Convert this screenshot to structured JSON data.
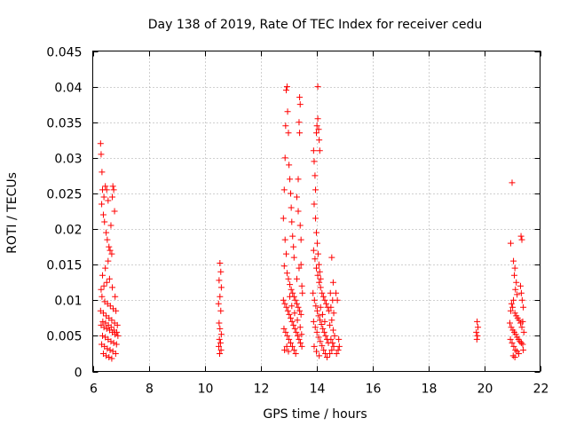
{
  "chart_data": {
    "type": "scatter",
    "title": "Day 138 of 2019, Rate Of TEC Index for receiver cedu",
    "xlabel": "GPS time / hours",
    "ylabel": "ROTI / TECUs",
    "xlim": [
      6,
      22
    ],
    "ylim": [
      0,
      0.045
    ],
    "x_ticks": [
      6,
      8,
      10,
      12,
      14,
      16,
      18,
      20,
      22
    ],
    "x_tick_labels": [
      "6",
      "8",
      "10",
      "12",
      "14",
      "16",
      "18",
      "20",
      "22"
    ],
    "y_ticks": [
      0,
      0.005,
      0.01,
      0.015,
      0.02,
      0.025,
      0.03,
      0.035,
      0.04,
      0.045
    ],
    "y_tick_labels": [
      "0",
      "0.005",
      "0.01",
      "0.015",
      "0.02",
      "0.025",
      "0.03",
      "0.035",
      "0.04",
      "0.045"
    ],
    "grid": true,
    "marker": "+",
    "color": "#ff0000",
    "series": [
      {
        "name": "ROTI",
        "points": [
          [
            6.28,
            0.032
          ],
          [
            6.3,
            0.0305
          ],
          [
            6.33,
            0.028
          ],
          [
            6.35,
            0.0255
          ],
          [
            6.4,
            0.0245
          ],
          [
            6.32,
            0.0235
          ],
          [
            6.45,
            0.026
          ],
          [
            6.5,
            0.0255
          ],
          [
            6.55,
            0.024
          ],
          [
            6.38,
            0.022
          ],
          [
            6.42,
            0.021
          ],
          [
            6.48,
            0.0195
          ],
          [
            6.52,
            0.0185
          ],
          [
            6.58,
            0.0175
          ],
          [
            6.62,
            0.017
          ],
          [
            6.68,
            0.0165
          ],
          [
            6.72,
            0.026
          ],
          [
            6.75,
            0.0255
          ],
          [
            6.78,
            0.0225
          ],
          [
            6.7,
            0.0245
          ],
          [
            6.65,
            0.0205
          ],
          [
            6.55,
            0.0155
          ],
          [
            6.45,
            0.0145
          ],
          [
            6.35,
            0.0135
          ],
          [
            6.6,
            0.013
          ],
          [
            6.5,
            0.0125
          ],
          [
            6.4,
            0.012
          ],
          [
            6.3,
            0.0115
          ],
          [
            6.7,
            0.0118
          ],
          [
            6.8,
            0.0105
          ],
          [
            6.33,
            0.0105
          ],
          [
            6.43,
            0.0098
          ],
          [
            6.53,
            0.0095
          ],
          [
            6.63,
            0.0092
          ],
          [
            6.73,
            0.0088
          ],
          [
            6.83,
            0.0085
          ],
          [
            6.28,
            0.0085
          ],
          [
            6.38,
            0.0082
          ],
          [
            6.48,
            0.0078
          ],
          [
            6.58,
            0.0075
          ],
          [
            6.68,
            0.0072
          ],
          [
            6.78,
            0.0068
          ],
          [
            6.88,
            0.0065
          ],
          [
            6.3,
            0.0065
          ],
          [
            6.4,
            0.0062
          ],
          [
            6.5,
            0.006
          ],
          [
            6.6,
            0.0058
          ],
          [
            6.7,
            0.0055
          ],
          [
            6.8,
            0.0052
          ],
          [
            6.9,
            0.005
          ],
          [
            6.35,
            0.005
          ],
          [
            6.45,
            0.0048
          ],
          [
            6.55,
            0.0045
          ],
          [
            6.65,
            0.0042
          ],
          [
            6.75,
            0.004
          ],
          [
            6.85,
            0.0038
          ],
          [
            6.32,
            0.0038
          ],
          [
            6.42,
            0.0035
          ],
          [
            6.52,
            0.0032
          ],
          [
            6.62,
            0.003
          ],
          [
            6.72,
            0.0028
          ],
          [
            6.82,
            0.0025
          ],
          [
            6.38,
            0.0025
          ],
          [
            6.48,
            0.0022
          ],
          [
            6.58,
            0.002
          ],
          [
            6.68,
            0.0018
          ],
          [
            6.36,
            0.007
          ],
          [
            6.46,
            0.0068
          ],
          [
            6.56,
            0.0065
          ],
          [
            6.66,
            0.0062
          ],
          [
            6.76,
            0.0058
          ],
          [
            6.86,
            0.0055
          ],
          [
            10.55,
            0.0152
          ],
          [
            10.58,
            0.014
          ],
          [
            10.52,
            0.0128
          ],
          [
            10.6,
            0.0118
          ],
          [
            10.55,
            0.0105
          ],
          [
            10.5,
            0.0095
          ],
          [
            10.58,
            0.0085
          ],
          [
            10.52,
            0.0068
          ],
          [
            10.55,
            0.006
          ],
          [
            10.6,
            0.0052
          ],
          [
            10.53,
            0.0045
          ],
          [
            10.57,
            0.004
          ],
          [
            10.51,
            0.0035
          ],
          [
            10.59,
            0.003
          ],
          [
            10.54,
            0.0025
          ],
          [
            12.82,
            0.0215
          ],
          [
            12.85,
            0.0255
          ],
          [
            12.88,
            0.03
          ],
          [
            12.9,
            0.0345
          ],
          [
            12.92,
            0.0395
          ],
          [
            12.95,
            0.04
          ],
          [
            12.97,
            0.0365
          ],
          [
            13.0,
            0.0335
          ],
          [
            13.02,
            0.029
          ],
          [
            13.05,
            0.027
          ],
          [
            13.08,
            0.025
          ],
          [
            13.1,
            0.023
          ],
          [
            13.12,
            0.021
          ],
          [
            13.15,
            0.019
          ],
          [
            13.18,
            0.0175
          ],
          [
            13.2,
            0.016
          ],
          [
            12.88,
            0.0185
          ],
          [
            12.92,
            0.0165
          ],
          [
            12.85,
            0.0148
          ],
          [
            12.95,
            0.0138
          ],
          [
            13.0,
            0.013
          ],
          [
            13.05,
            0.0122
          ],
          [
            13.1,
            0.0115
          ],
          [
            13.15,
            0.011
          ],
          [
            13.2,
            0.0105
          ],
          [
            13.25,
            0.01
          ],
          [
            13.3,
            0.0095
          ],
          [
            13.35,
            0.009
          ],
          [
            13.4,
            0.0085
          ],
          [
            13.45,
            0.008
          ],
          [
            12.82,
            0.01
          ],
          [
            12.87,
            0.0095
          ],
          [
            12.93,
            0.009
          ],
          [
            12.98,
            0.0085
          ],
          [
            13.03,
            0.008
          ],
          [
            13.08,
            0.0075
          ],
          [
            13.13,
            0.007
          ],
          [
            13.18,
            0.0065
          ],
          [
            13.23,
            0.006
          ],
          [
            13.28,
            0.0055
          ],
          [
            13.33,
            0.005
          ],
          [
            13.38,
            0.0045
          ],
          [
            13.43,
            0.004
          ],
          [
            13.48,
            0.0035
          ],
          [
            12.84,
            0.006
          ],
          [
            12.9,
            0.0055
          ],
          [
            12.96,
            0.005
          ],
          [
            13.02,
            0.0045
          ],
          [
            13.08,
            0.004
          ],
          [
            13.14,
            0.0035
          ],
          [
            13.2,
            0.003
          ],
          [
            13.26,
            0.0025
          ],
          [
            12.86,
            0.003
          ],
          [
            12.94,
            0.0035
          ],
          [
            13.0,
            0.0028
          ],
          [
            13.3,
            0.013
          ],
          [
            13.38,
            0.0145
          ],
          [
            13.45,
            0.015
          ],
          [
            13.4,
            0.0385
          ],
          [
            13.42,
            0.0375
          ],
          [
            13.38,
            0.035
          ],
          [
            13.4,
            0.0335
          ],
          [
            13.35,
            0.027
          ],
          [
            13.3,
            0.0245
          ],
          [
            13.35,
            0.0225
          ],
          [
            13.42,
            0.0205
          ],
          [
            13.45,
            0.0185
          ],
          [
            13.48,
            0.012
          ],
          [
            13.5,
            0.011
          ],
          [
            13.05,
            0.0105
          ],
          [
            13.12,
            0.0092
          ],
          [
            13.22,
            0.0082
          ],
          [
            13.32,
            0.0072
          ],
          [
            13.42,
            0.0062
          ],
          [
            13.47,
            0.0052
          ],
          [
            13.9,
            0.031
          ],
          [
            13.92,
            0.0295
          ],
          [
            13.95,
            0.0275
          ],
          [
            13.97,
            0.0255
          ],
          [
            14.0,
            0.0335
          ],
          [
            14.02,
            0.0345
          ],
          [
            14.05,
            0.0355
          ],
          [
            14.08,
            0.034
          ],
          [
            14.1,
            0.0325
          ],
          [
            14.12,
            0.031
          ],
          [
            14.05,
            0.04
          ],
          [
            13.92,
            0.0235
          ],
          [
            13.97,
            0.0215
          ],
          [
            14.0,
            0.0195
          ],
          [
            14.03,
            0.018
          ],
          [
            14.06,
            0.0165
          ],
          [
            14.09,
            0.015
          ],
          [
            14.12,
            0.014
          ],
          [
            14.15,
            0.013
          ],
          [
            13.9,
            0.017
          ],
          [
            13.95,
            0.0158
          ],
          [
            14.0,
            0.0145
          ],
          [
            14.05,
            0.0135
          ],
          [
            14.1,
            0.0125
          ],
          [
            14.15,
            0.0118
          ],
          [
            14.2,
            0.011
          ],
          [
            14.25,
            0.0105
          ],
          [
            14.3,
            0.01
          ],
          [
            14.35,
            0.0095
          ],
          [
            14.4,
            0.009
          ],
          [
            14.45,
            0.0085
          ],
          [
            13.88,
            0.011
          ],
          [
            13.93,
            0.01
          ],
          [
            13.98,
            0.0092
          ],
          [
            14.03,
            0.0085
          ],
          [
            14.08,
            0.0078
          ],
          [
            14.13,
            0.0072
          ],
          [
            14.18,
            0.0066
          ],
          [
            14.23,
            0.006
          ],
          [
            14.28,
            0.0055
          ],
          [
            14.33,
            0.005
          ],
          [
            14.38,
            0.0045
          ],
          [
            14.43,
            0.004
          ],
          [
            13.9,
            0.007
          ],
          [
            13.96,
            0.0062
          ],
          [
            14.02,
            0.0055
          ],
          [
            14.08,
            0.0048
          ],
          [
            14.14,
            0.0042
          ],
          [
            14.2,
            0.0036
          ],
          [
            14.26,
            0.003
          ],
          [
            14.32,
            0.0025
          ],
          [
            14.38,
            0.002
          ],
          [
            13.92,
            0.0035
          ],
          [
            14.0,
            0.0028
          ],
          [
            14.1,
            0.0022
          ],
          [
            14.15,
            0.009
          ],
          [
            14.22,
            0.008
          ],
          [
            14.3,
            0.007
          ],
          [
            14.55,
            0.016
          ],
          [
            14.6,
            0.0125
          ],
          [
            14.5,
            0.011
          ],
          [
            14.58,
            0.01
          ],
          [
            14.52,
            0.009
          ],
          [
            14.62,
            0.0082
          ],
          [
            14.55,
            0.0072
          ],
          [
            14.48,
            0.0065
          ],
          [
            14.6,
            0.0058
          ],
          [
            14.65,
            0.005
          ],
          [
            14.52,
            0.0045
          ],
          [
            14.58,
            0.004
          ],
          [
            14.62,
            0.0035
          ],
          [
            14.55,
            0.003
          ],
          [
            14.48,
            0.0025
          ],
          [
            14.7,
            0.011
          ],
          [
            14.75,
            0.01
          ],
          [
            14.8,
            0.0045
          ],
          [
            14.82,
            0.0035
          ],
          [
            14.78,
            0.003
          ],
          [
            14.72,
            0.0025
          ],
          [
            19.75,
            0.007
          ],
          [
            19.78,
            0.0062
          ],
          [
            19.72,
            0.0055
          ],
          [
            19.76,
            0.005
          ],
          [
            19.74,
            0.0045
          ],
          [
            21.0,
            0.0265
          ],
          [
            20.95,
            0.018
          ],
          [
            21.05,
            0.0155
          ],
          [
            21.1,
            0.0145
          ],
          [
            21.08,
            0.0135
          ],
          [
            21.15,
            0.0125
          ],
          [
            21.12,
            0.0115
          ],
          [
            21.18,
            0.0108
          ],
          [
            21.05,
            0.01
          ],
          [
            20.98,
            0.0095
          ],
          [
            21.02,
            0.009
          ],
          [
            20.95,
            0.0085
          ],
          [
            21.1,
            0.0082
          ],
          [
            21.15,
            0.0078
          ],
          [
            21.2,
            0.0075
          ],
          [
            21.25,
            0.0072
          ],
          [
            21.3,
            0.0068
          ],
          [
            21.35,
            0.0062
          ],
          [
            20.92,
            0.0068
          ],
          [
            20.97,
            0.0062
          ],
          [
            21.03,
            0.0058
          ],
          [
            21.08,
            0.0055
          ],
          [
            21.13,
            0.0052
          ],
          [
            21.18,
            0.0048
          ],
          [
            21.23,
            0.0045
          ],
          [
            21.28,
            0.0042
          ],
          [
            21.33,
            0.004
          ],
          [
            21.38,
            0.0038
          ],
          [
            20.94,
            0.0045
          ],
          [
            21.0,
            0.004
          ],
          [
            21.06,
            0.0035
          ],
          [
            21.12,
            0.003
          ],
          [
            21.18,
            0.0028
          ],
          [
            21.24,
            0.0025
          ],
          [
            21.04,
            0.0022
          ],
          [
            21.1,
            0.002
          ],
          [
            21.32,
            0.019
          ],
          [
            21.35,
            0.0185
          ],
          [
            21.3,
            0.012
          ],
          [
            21.33,
            0.011
          ],
          [
            21.36,
            0.01
          ],
          [
            21.4,
            0.009
          ],
          [
            21.38,
            0.007
          ],
          [
            21.42,
            0.0055
          ],
          [
            21.4,
            0.003
          ]
        ]
      }
    ]
  }
}
